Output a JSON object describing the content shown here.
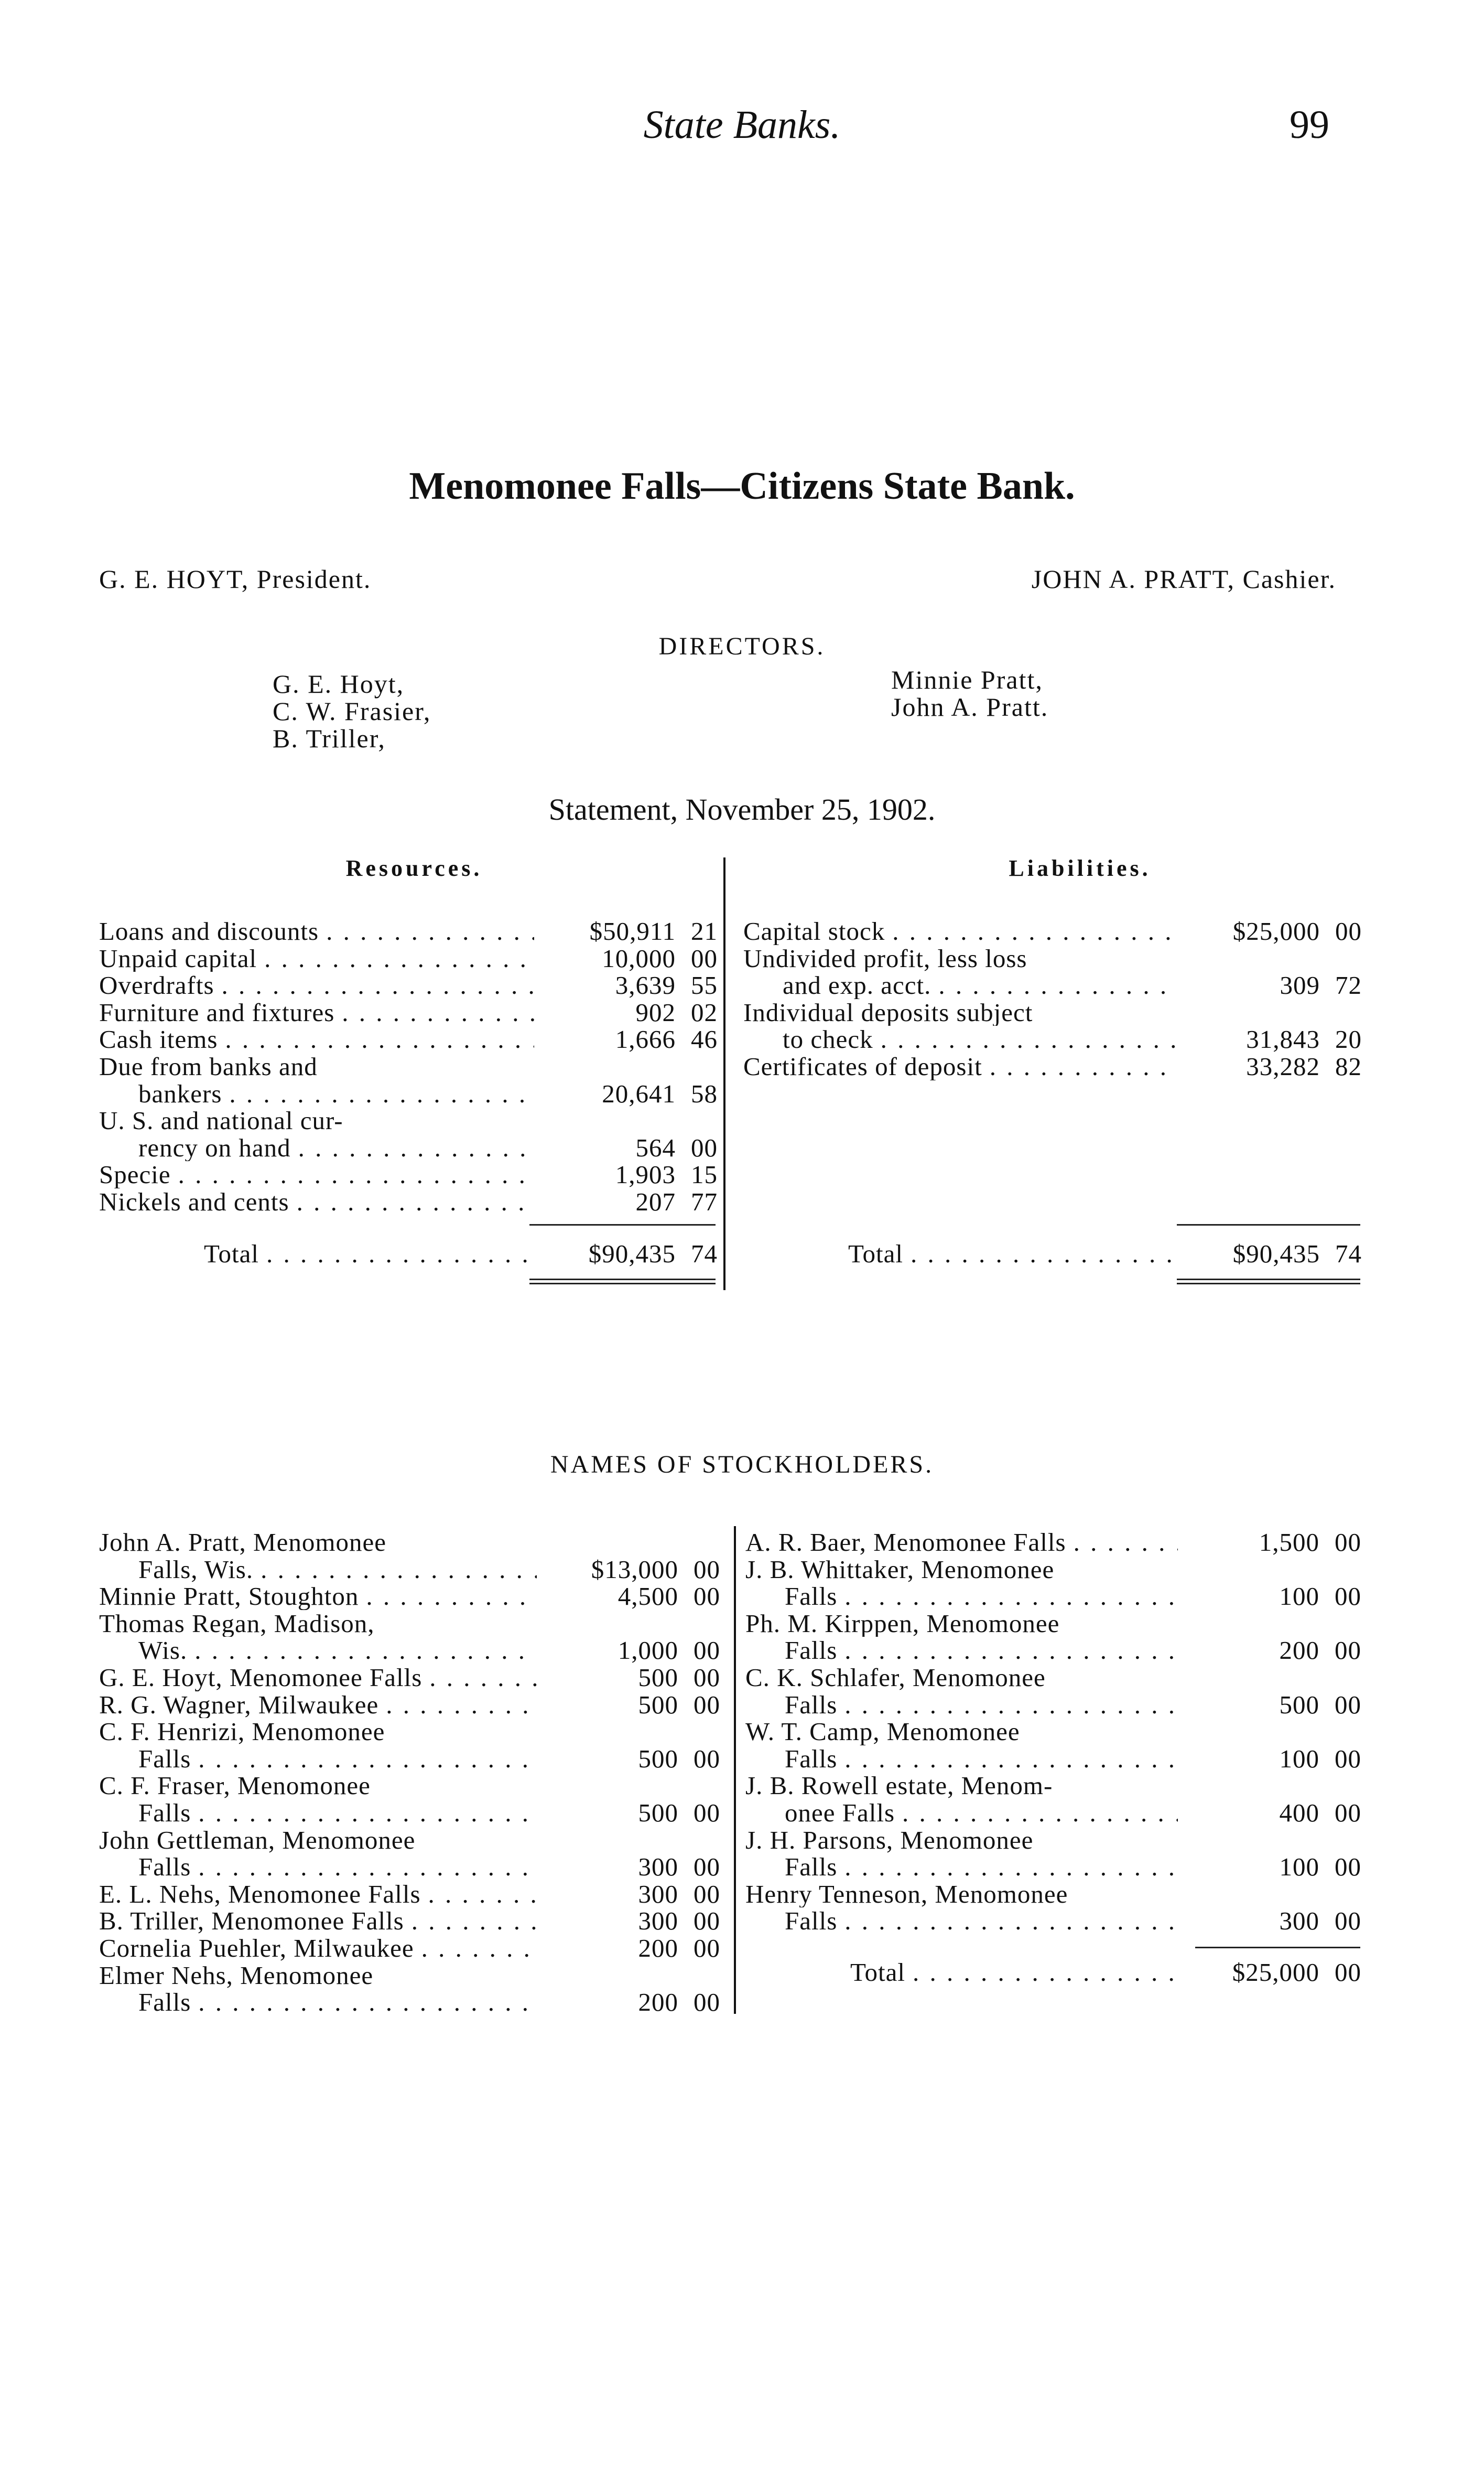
{
  "header": {
    "running_title": "State Banks.",
    "page_number": "99"
  },
  "title": "Menomonee Falls—Citizens State Bank.",
  "officers": {
    "president": "G. E. HOYT, President.",
    "cashier": "JOHN A. PRATT, Cashier."
  },
  "directors": {
    "heading": "DIRECTORS.",
    "left": [
      "G. E. Hoyt,",
      "C. W. Frasier,",
      "B. Triller,"
    ],
    "right": [
      "Minnie Pratt,",
      "John A. Pratt."
    ]
  },
  "statement": "Statement, November 25, 1902.",
  "resources": {
    "heading": "Resources.",
    "items": [
      {
        "lines": [
          "Loans and discounts"
        ],
        "dollars": "$50,911",
        "cents": "21"
      },
      {
        "lines": [
          "Unpaid capital"
        ],
        "dollars": "10,000",
        "cents": "00"
      },
      {
        "lines": [
          "Overdrafts"
        ],
        "dollars": "3,639",
        "cents": "55"
      },
      {
        "lines": [
          "Furniture and fixtures"
        ],
        "dollars": "902",
        "cents": "02"
      },
      {
        "lines": [
          "Cash items"
        ],
        "dollars": "1,666",
        "cents": "46"
      },
      {
        "lines": [
          "Due from banks and",
          "bankers"
        ],
        "dollars": "20,641",
        "cents": "58"
      },
      {
        "lines": [
          "U. S. and national cur-",
          "rency on hand"
        ],
        "dollars": "564",
        "cents": "00"
      },
      {
        "lines": [
          "Specie"
        ],
        "dollars": "1,903",
        "cents": "15"
      },
      {
        "lines": [
          "Nickels and cents"
        ],
        "dollars": "207",
        "cents": "77"
      }
    ],
    "total": {
      "label": "Total",
      "dollars": "$90,435",
      "cents": "74"
    }
  },
  "liabilities": {
    "heading": "Liabilities.",
    "items": [
      {
        "lines": [
          "Capital stock"
        ],
        "dollars": "$25,000",
        "cents": "00"
      },
      {
        "lines": [
          "Undivided profit, less loss",
          "and exp. acct."
        ],
        "dollars": "309",
        "cents": "72"
      },
      {
        "lines": [
          "Individual deposits subject",
          "to check"
        ],
        "dollars": "31,843",
        "cents": "20"
      },
      {
        "lines": [
          "Certificates of deposit"
        ],
        "dollars": "33,282",
        "cents": "82"
      }
    ],
    "total": {
      "label": "Total",
      "dollars": "$90,435",
      "cents": "74"
    }
  },
  "stockholders": {
    "heading": "NAMES OF STOCKHOLDERS.",
    "left": [
      {
        "lines": [
          "John A. Pratt, Menomonee",
          "Falls, Wis."
        ],
        "dollars": "$13,000",
        "cents": "00"
      },
      {
        "lines": [
          "Minnie Pratt, Stoughton"
        ],
        "dollars": "4,500",
        "cents": "00"
      },
      {
        "lines": [
          "Thomas Regan, Madison,",
          "Wis."
        ],
        "dollars": "1,000",
        "cents": "00"
      },
      {
        "lines": [
          "G. E. Hoyt, Menomonee Falls"
        ],
        "dollars": "500",
        "cents": "00"
      },
      {
        "lines": [
          "R. G. Wagner, Milwaukee"
        ],
        "dollars": "500",
        "cents": "00"
      },
      {
        "lines": [
          "C. F. Henrizi, Menomonee",
          "Falls"
        ],
        "dollars": "500",
        "cents": "00"
      },
      {
        "lines": [
          "C. F. Fraser, Menomonee",
          "Falls"
        ],
        "dollars": "500",
        "cents": "00"
      },
      {
        "lines": [
          "John Gettleman, Menomonee",
          "Falls"
        ],
        "dollars": "300",
        "cents": "00"
      },
      {
        "lines": [
          "E. L. Nehs, Menomonee Falls"
        ],
        "dollars": "300",
        "cents": "00"
      },
      {
        "lines": [
          "B. Triller, Menomonee Falls"
        ],
        "dollars": "300",
        "cents": "00"
      },
      {
        "lines": [
          "Cornelia Puehler, Milwaukee"
        ],
        "dollars": "200",
        "cents": "00"
      },
      {
        "lines": [
          "Elmer Nehs, Menomonee",
          "Falls"
        ],
        "dollars": "200",
        "cents": "00"
      }
    ],
    "right": [
      {
        "lines": [
          "A. R. Baer, Menomonee Falls"
        ],
        "dollars": "1,500",
        "cents": "00"
      },
      {
        "lines": [
          "J. B. Whittaker, Menomonee",
          "Falls"
        ],
        "dollars": "100",
        "cents": "00"
      },
      {
        "lines": [
          "Ph. M. Kirppen, Menomonee",
          "Falls"
        ],
        "dollars": "200",
        "cents": "00"
      },
      {
        "lines": [
          "C. K. Schlafer, Menomonee",
          "Falls"
        ],
        "dollars": "500",
        "cents": "00"
      },
      {
        "lines": [
          "W. T. Camp, Menomonee",
          "Falls"
        ],
        "dollars": "100",
        "cents": "00"
      },
      {
        "lines": [
          "J. B. Rowell estate, Menom-",
          "onee Falls"
        ],
        "dollars": "400",
        "cents": "00"
      },
      {
        "lines": [
          "J. H. Parsons, Menomonee",
          "Falls"
        ],
        "dollars": "100",
        "cents": "00"
      },
      {
        "lines": [
          "Henry Tenneson, Menomonee",
          "Falls"
        ],
        "dollars": "300",
        "cents": "00"
      }
    ],
    "total": {
      "label": "Total",
      "dollars": "$25,000",
      "cents": "00"
    }
  }
}
